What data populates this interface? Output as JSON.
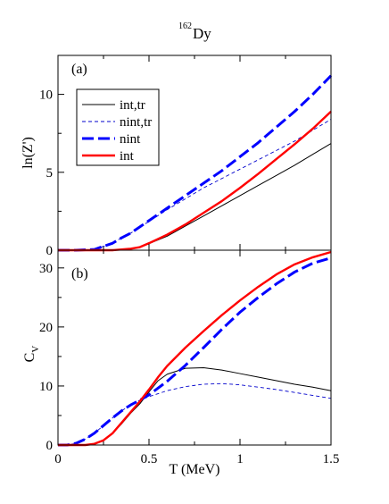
{
  "figure": {
    "title_main": "Dy",
    "title_sup": "162",
    "xlabel": "T (MeV)",
    "x_ticks": [
      "0",
      "0.5",
      "1",
      "1.5"
    ]
  },
  "chart_data": [
    {
      "type": "line",
      "panel_label": "(a)",
      "ylabel": "ln(Z')",
      "xlim": [
        0,
        1.5
      ],
      "ylim": [
        0,
        12.5
      ],
      "y_ticks": [
        "0",
        "5",
        "10"
      ],
      "y_tick_values": [
        0,
        5,
        10
      ],
      "legend": "top-left",
      "series": [
        {
          "name": "int,tr",
          "color": "#000000",
          "style": "solid-thin",
          "x": [
            0,
            0.1,
            0.2,
            0.3,
            0.4,
            0.45,
            0.5,
            0.6,
            0.7,
            0.8,
            0.9,
            1.0,
            1.1,
            1.2,
            1.3,
            1.4,
            1.5
          ],
          "y": [
            0,
            0,
            0,
            0,
            0.1,
            0.2,
            0.42,
            0.9,
            1.55,
            2.2,
            2.85,
            3.5,
            4.15,
            4.8,
            5.45,
            6.15,
            6.85
          ]
        },
        {
          "name": "nint,tr",
          "color": "#0000cc",
          "style": "dashed-thin",
          "x": [
            0,
            0.1,
            0.2,
            0.3,
            0.35,
            0.4,
            0.5,
            0.6,
            0.7,
            0.8,
            0.9,
            1.0,
            1.1,
            1.2,
            1.3,
            1.4,
            1.5
          ],
          "y": [
            0,
            0,
            0.05,
            0.45,
            0.8,
            1.1,
            1.85,
            2.6,
            3.3,
            4.0,
            4.6,
            5.2,
            5.8,
            6.4,
            7.0,
            7.7,
            8.4
          ]
        },
        {
          "name": "nint",
          "color": "#0000ff",
          "style": "dashed-thick",
          "x": [
            0,
            0.1,
            0.2,
            0.3,
            0.35,
            0.4,
            0.5,
            0.6,
            0.7,
            0.8,
            0.9,
            1.0,
            1.1,
            1.2,
            1.3,
            1.4,
            1.5
          ],
          "y": [
            0,
            0,
            0.05,
            0.45,
            0.8,
            1.1,
            1.9,
            2.7,
            3.5,
            4.3,
            5.1,
            6.0,
            6.9,
            7.9,
            8.9,
            10.0,
            11.2
          ]
        },
        {
          "name": "int",
          "color": "#ff0000",
          "style": "solid-thick",
          "x": [
            0,
            0.1,
            0.2,
            0.3,
            0.4,
            0.45,
            0.5,
            0.6,
            0.7,
            0.8,
            0.9,
            1.0,
            1.1,
            1.2,
            1.3,
            1.4,
            1.5
          ],
          "y": [
            0,
            0,
            0,
            0,
            0.1,
            0.2,
            0.45,
            1.0,
            1.65,
            2.4,
            3.15,
            4.0,
            4.9,
            5.85,
            6.8,
            7.8,
            8.9
          ]
        }
      ]
    },
    {
      "type": "line",
      "panel_label": "(b)",
      "ylabel": "C",
      "ylabel_sub": "V",
      "xlim": [
        0,
        1.5
      ],
      "ylim": [
        0,
        33
      ],
      "y_ticks": [
        "0",
        "10",
        "20",
        "30"
      ],
      "y_tick_values": [
        0,
        10,
        20,
        30
      ],
      "series": [
        {
          "name": "int,tr",
          "color": "#000000",
          "style": "solid-thin",
          "x": [
            0,
            0.15,
            0.2,
            0.25,
            0.3,
            0.35,
            0.4,
            0.45,
            0.5,
            0.55,
            0.6,
            0.7,
            0.8,
            0.9,
            1.0,
            1.1,
            1.2,
            1.3,
            1.4,
            1.5
          ],
          "y": [
            0,
            0,
            0.2,
            0.8,
            2.0,
            3.6,
            5.4,
            7.0,
            9.0,
            10.9,
            12.0,
            13.0,
            13.1,
            12.7,
            12.1,
            11.5,
            10.9,
            10.3,
            9.8,
            9.2
          ]
        },
        {
          "name": "nint,tr",
          "color": "#0000cc",
          "style": "dashed-thin",
          "x": [
            0,
            0.05,
            0.1,
            0.15,
            0.2,
            0.25,
            0.3,
            0.35,
            0.4,
            0.45,
            0.5,
            0.6,
            0.7,
            0.8,
            0.9,
            1.0,
            1.1,
            1.2,
            1.3,
            1.4,
            1.5
          ],
          "y": [
            0,
            0,
            0.3,
            1.0,
            2.0,
            3.3,
            4.6,
            5.8,
            6.8,
            7.6,
            8.2,
            9.2,
            9.9,
            10.3,
            10.4,
            10.2,
            9.8,
            9.4,
            8.9,
            8.4,
            7.9
          ]
        },
        {
          "name": "nint",
          "color": "#0000ff",
          "style": "dashed-thick",
          "x": [
            0,
            0.05,
            0.1,
            0.15,
            0.2,
            0.25,
            0.3,
            0.35,
            0.4,
            0.45,
            0.5,
            0.6,
            0.7,
            0.8,
            0.9,
            1.0,
            1.1,
            1.2,
            1.3,
            1.4,
            1.5
          ],
          "y": [
            0,
            0,
            0.3,
            1.0,
            2.0,
            3.3,
            4.6,
            5.8,
            6.8,
            7.6,
            8.5,
            10.8,
            13.5,
            16.5,
            19.6,
            22.5,
            25.0,
            27.3,
            29.3,
            30.8,
            31.7
          ]
        },
        {
          "name": "int",
          "color": "#ff0000",
          "style": "solid-thick",
          "x": [
            0,
            0.15,
            0.2,
            0.25,
            0.3,
            0.35,
            0.4,
            0.45,
            0.5,
            0.55,
            0.6,
            0.7,
            0.8,
            0.9,
            1.0,
            1.1,
            1.2,
            1.3,
            1.4,
            1.5
          ],
          "y": [
            0,
            0,
            0.2,
            0.8,
            2.0,
            3.8,
            5.6,
            7.4,
            9.4,
            11.5,
            13.4,
            16.5,
            19.3,
            22.0,
            24.5,
            26.8,
            28.9,
            30.6,
            31.8,
            32.7
          ]
        }
      ]
    }
  ]
}
